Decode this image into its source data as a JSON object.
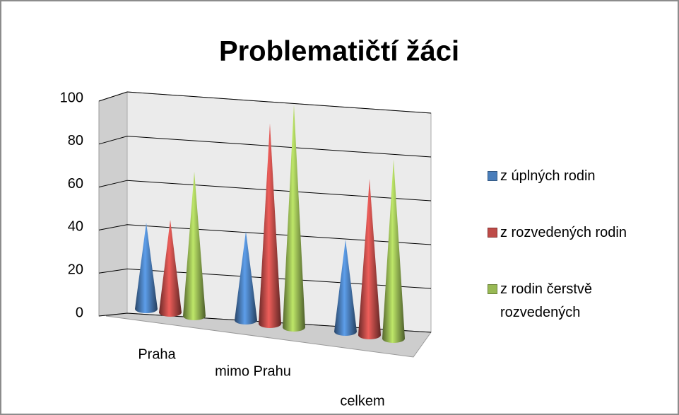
{
  "chart_data": {
    "type": "cone3d",
    "title": "Problematičtí žáci",
    "categories": [
      "Praha",
      "mimo Prahu",
      "celkem"
    ],
    "series": [
      {
        "name": "z úplných rodin",
        "color": "#4a7ebb",
        "values": [
          40,
          40,
          40
        ]
      },
      {
        "name": "z rozvedených rodin",
        "color": "#be4b48",
        "values": [
          43,
          90,
          68
        ]
      },
      {
        "name": "z rodin čerstvě rozvedených",
        "color": "#98b954",
        "values": [
          67,
          100,
          78
        ]
      }
    ],
    "ylim": [
      0,
      100
    ],
    "yticks": [
      0,
      20,
      40,
      60,
      80,
      100
    ],
    "grid": true,
    "legend": "right"
  }
}
